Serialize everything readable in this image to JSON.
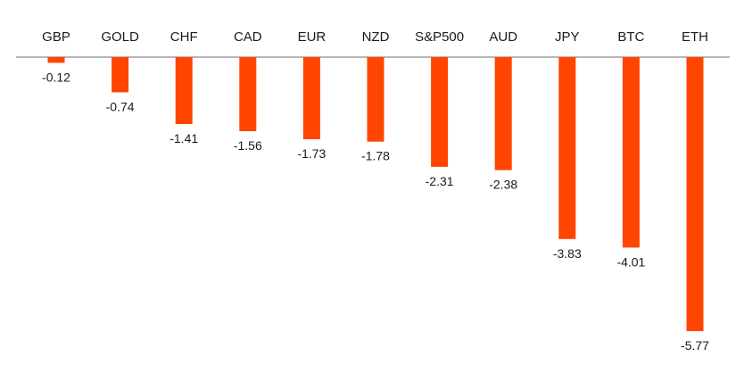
{
  "chart_data": {
    "type": "bar",
    "categories": [
      "GBP",
      "GOLD",
      "CHF",
      "CAD",
      "EUR",
      "NZD",
      "S&P500",
      "AUD",
      "JPY",
      "BTC",
      "ETH"
    ],
    "values": [
      -0.12,
      -0.74,
      -1.41,
      -1.56,
      -1.73,
      -1.78,
      -2.31,
      -2.38,
      -3.83,
      -4.01,
      -5.77
    ],
    "value_labels": [
      "-0.12",
      "-0.74",
      "-1.41",
      "-1.56",
      "-1.73",
      "-1.78",
      "-2.31",
      "-2.38",
      "-3.83",
      "-4.01",
      "-5.77"
    ],
    "ylim": [
      -5.77,
      0
    ],
    "grid": false,
    "legend": "none",
    "colors": {
      "bar": "#FF4500",
      "axis": "#9E9E9E",
      "text": "#1A1A1A"
    }
  }
}
